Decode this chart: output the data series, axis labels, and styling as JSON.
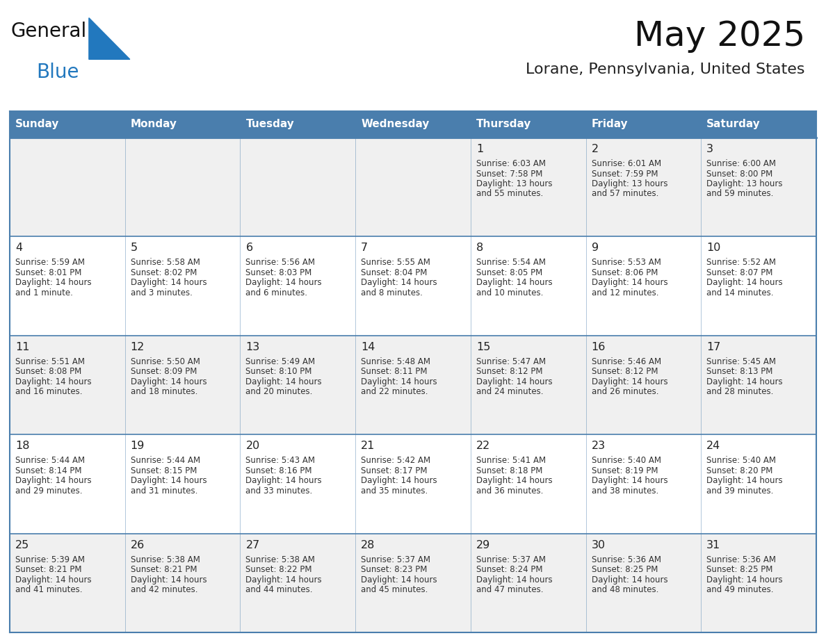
{
  "title": "May 2025",
  "subtitle": "Lorane, Pennsylvania, United States",
  "days_of_week": [
    "Sunday",
    "Monday",
    "Tuesday",
    "Wednesday",
    "Thursday",
    "Friday",
    "Saturday"
  ],
  "header_bg": "#4A7EAD",
  "header_text": "#FFFFFF",
  "cell_bg_odd": "#F0F0F0",
  "cell_bg_even": "#FFFFFF",
  "day_number_color": "#222222",
  "text_color": "#333333",
  "border_color": "#4A7EAD",
  "title_color": "#111111",
  "subtitle_color": "#222222",
  "logo_general_color": "#111111",
  "logo_blue_color": "#2278BE",
  "weeks": [
    [
      null,
      null,
      null,
      null,
      1,
      2,
      3
    ],
    [
      4,
      5,
      6,
      7,
      8,
      9,
      10
    ],
    [
      11,
      12,
      13,
      14,
      15,
      16,
      17
    ],
    [
      18,
      19,
      20,
      21,
      22,
      23,
      24
    ],
    [
      25,
      26,
      27,
      28,
      29,
      30,
      31
    ]
  ],
  "day_data": {
    "1": {
      "sunrise": "6:03 AM",
      "sunset": "7:58 PM",
      "daylight_line1": "Daylight: 13 hours",
      "daylight_line2": "and 55 minutes."
    },
    "2": {
      "sunrise": "6:01 AM",
      "sunset": "7:59 PM",
      "daylight_line1": "Daylight: 13 hours",
      "daylight_line2": "and 57 minutes."
    },
    "3": {
      "sunrise": "6:00 AM",
      "sunset": "8:00 PM",
      "daylight_line1": "Daylight: 13 hours",
      "daylight_line2": "and 59 minutes."
    },
    "4": {
      "sunrise": "5:59 AM",
      "sunset": "8:01 PM",
      "daylight_line1": "Daylight: 14 hours",
      "daylight_line2": "and 1 minute."
    },
    "5": {
      "sunrise": "5:58 AM",
      "sunset": "8:02 PM",
      "daylight_line1": "Daylight: 14 hours",
      "daylight_line2": "and 3 minutes."
    },
    "6": {
      "sunrise": "5:56 AM",
      "sunset": "8:03 PM",
      "daylight_line1": "Daylight: 14 hours",
      "daylight_line2": "and 6 minutes."
    },
    "7": {
      "sunrise": "5:55 AM",
      "sunset": "8:04 PM",
      "daylight_line1": "Daylight: 14 hours",
      "daylight_line2": "and 8 minutes."
    },
    "8": {
      "sunrise": "5:54 AM",
      "sunset": "8:05 PM",
      "daylight_line1": "Daylight: 14 hours",
      "daylight_line2": "and 10 minutes."
    },
    "9": {
      "sunrise": "5:53 AM",
      "sunset": "8:06 PM",
      "daylight_line1": "Daylight: 14 hours",
      "daylight_line2": "and 12 minutes."
    },
    "10": {
      "sunrise": "5:52 AM",
      "sunset": "8:07 PM",
      "daylight_line1": "Daylight: 14 hours",
      "daylight_line2": "and 14 minutes."
    },
    "11": {
      "sunrise": "5:51 AM",
      "sunset": "8:08 PM",
      "daylight_line1": "Daylight: 14 hours",
      "daylight_line2": "and 16 minutes."
    },
    "12": {
      "sunrise": "5:50 AM",
      "sunset": "8:09 PM",
      "daylight_line1": "Daylight: 14 hours",
      "daylight_line2": "and 18 minutes."
    },
    "13": {
      "sunrise": "5:49 AM",
      "sunset": "8:10 PM",
      "daylight_line1": "Daylight: 14 hours",
      "daylight_line2": "and 20 minutes."
    },
    "14": {
      "sunrise": "5:48 AM",
      "sunset": "8:11 PM",
      "daylight_line1": "Daylight: 14 hours",
      "daylight_line2": "and 22 minutes."
    },
    "15": {
      "sunrise": "5:47 AM",
      "sunset": "8:12 PM",
      "daylight_line1": "Daylight: 14 hours",
      "daylight_line2": "and 24 minutes."
    },
    "16": {
      "sunrise": "5:46 AM",
      "sunset": "8:12 PM",
      "daylight_line1": "Daylight: 14 hours",
      "daylight_line2": "and 26 minutes."
    },
    "17": {
      "sunrise": "5:45 AM",
      "sunset": "8:13 PM",
      "daylight_line1": "Daylight: 14 hours",
      "daylight_line2": "and 28 minutes."
    },
    "18": {
      "sunrise": "5:44 AM",
      "sunset": "8:14 PM",
      "daylight_line1": "Daylight: 14 hours",
      "daylight_line2": "and 29 minutes."
    },
    "19": {
      "sunrise": "5:44 AM",
      "sunset": "8:15 PM",
      "daylight_line1": "Daylight: 14 hours",
      "daylight_line2": "and 31 minutes."
    },
    "20": {
      "sunrise": "5:43 AM",
      "sunset": "8:16 PM",
      "daylight_line1": "Daylight: 14 hours",
      "daylight_line2": "and 33 minutes."
    },
    "21": {
      "sunrise": "5:42 AM",
      "sunset": "8:17 PM",
      "daylight_line1": "Daylight: 14 hours",
      "daylight_line2": "and 35 minutes."
    },
    "22": {
      "sunrise": "5:41 AM",
      "sunset": "8:18 PM",
      "daylight_line1": "Daylight: 14 hours",
      "daylight_line2": "and 36 minutes."
    },
    "23": {
      "sunrise": "5:40 AM",
      "sunset": "8:19 PM",
      "daylight_line1": "Daylight: 14 hours",
      "daylight_line2": "and 38 minutes."
    },
    "24": {
      "sunrise": "5:40 AM",
      "sunset": "8:20 PM",
      "daylight_line1": "Daylight: 14 hours",
      "daylight_line2": "and 39 minutes."
    },
    "25": {
      "sunrise": "5:39 AM",
      "sunset": "8:21 PM",
      "daylight_line1": "Daylight: 14 hours",
      "daylight_line2": "and 41 minutes."
    },
    "26": {
      "sunrise": "5:38 AM",
      "sunset": "8:21 PM",
      "daylight_line1": "Daylight: 14 hours",
      "daylight_line2": "and 42 minutes."
    },
    "27": {
      "sunrise": "5:38 AM",
      "sunset": "8:22 PM",
      "daylight_line1": "Daylight: 14 hours",
      "daylight_line2": "and 44 minutes."
    },
    "28": {
      "sunrise": "5:37 AM",
      "sunset": "8:23 PM",
      "daylight_line1": "Daylight: 14 hours",
      "daylight_line2": "and 45 minutes."
    },
    "29": {
      "sunrise": "5:37 AM",
      "sunset": "8:24 PM",
      "daylight_line1": "Daylight: 14 hours",
      "daylight_line2": "and 47 minutes."
    },
    "30": {
      "sunrise": "5:36 AM",
      "sunset": "8:25 PM",
      "daylight_line1": "Daylight: 14 hours",
      "daylight_line2": "and 48 minutes."
    },
    "31": {
      "sunrise": "5:36 AM",
      "sunset": "8:25 PM",
      "daylight_line1": "Daylight: 14 hours",
      "daylight_line2": "and 49 minutes."
    }
  }
}
